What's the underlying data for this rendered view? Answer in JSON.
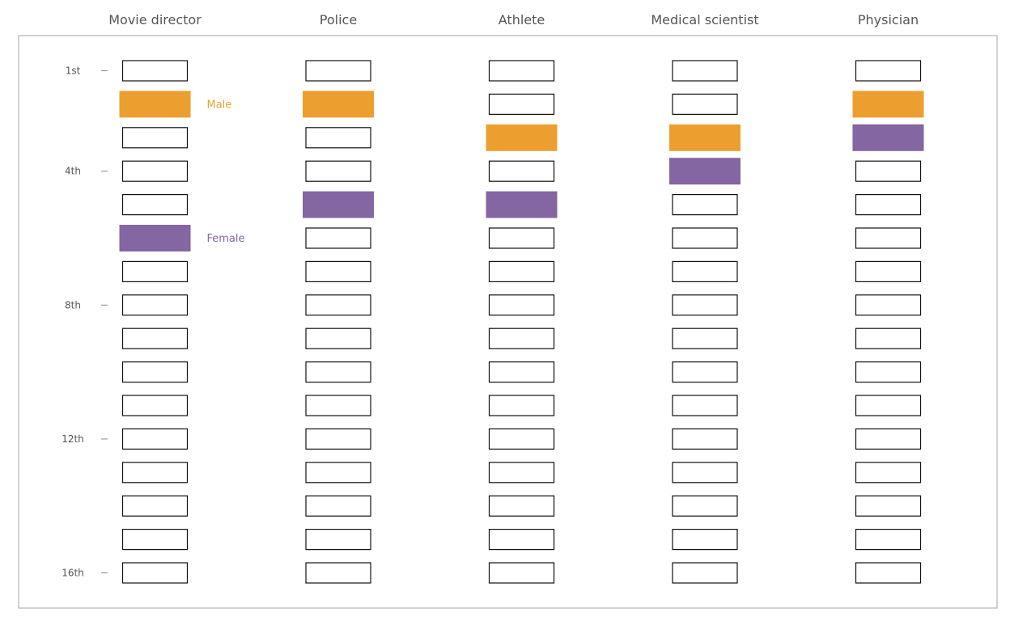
{
  "chart_data": {
    "type": "table",
    "title": "",
    "rank_count": 16,
    "rank_ticks": [
      {
        "rank": 1,
        "label": "1st"
      },
      {
        "rank": 4,
        "label": "4th"
      },
      {
        "rank": 8,
        "label": "8th"
      },
      {
        "rank": 12,
        "label": "12th"
      },
      {
        "rank": 16,
        "label": "16th"
      }
    ],
    "columns": [
      {
        "name": "Movie director",
        "male_rank": 2,
        "female_rank": 6
      },
      {
        "name": "Police",
        "male_rank": 2,
        "female_rank": 5
      },
      {
        "name": "Athlete",
        "male_rank": 3,
        "female_rank": 5
      },
      {
        "name": "Medical scientist",
        "male_rank": 3,
        "female_rank": 4
      },
      {
        "name": "Physician",
        "male_rank": 2,
        "female_rank": 3
      }
    ],
    "legend": [
      {
        "key": "male",
        "label": "Male",
        "color": "#EC9F2F"
      },
      {
        "key": "female",
        "label": "Female",
        "color": "#8466A2"
      }
    ],
    "grid": false
  }
}
